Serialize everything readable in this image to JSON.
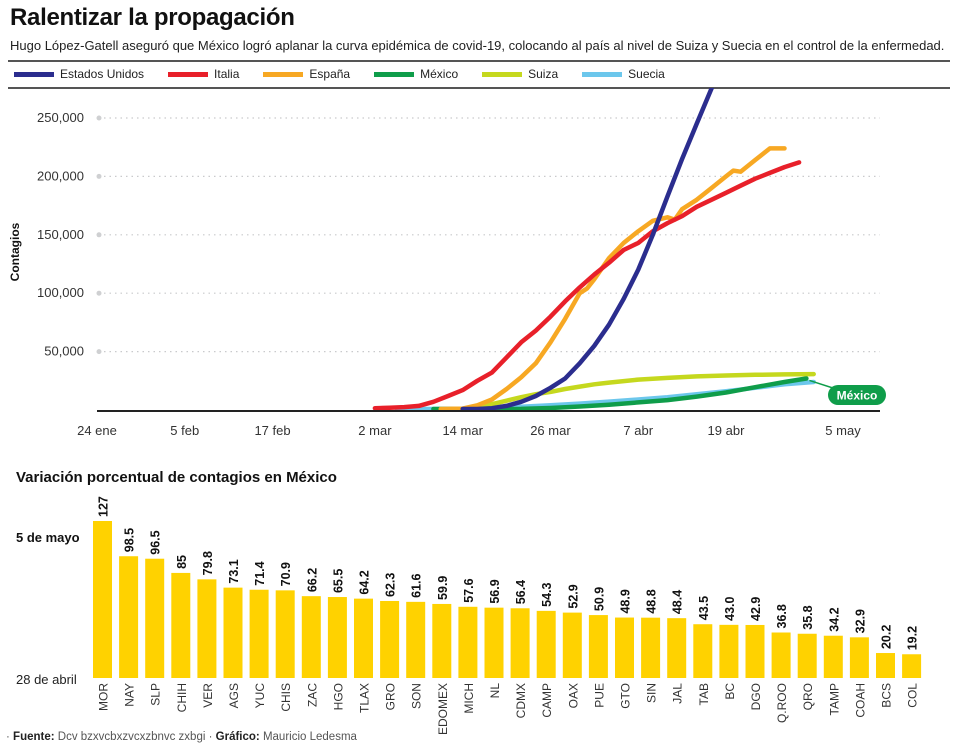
{
  "header": {
    "title": "Ralentizar la propagación",
    "subtitle": "Hugo López-Gatell aseguró que México logró aplanar la curva epidémica de covid-19, colocando al país al nivel de Suiza y Suecia en el control de la enfermedad."
  },
  "legend": [
    {
      "label": "Estados Unidos",
      "color": "#2b2d8e"
    },
    {
      "label": "Italia",
      "color": "#e8202a"
    },
    {
      "label": "España",
      "color": "#f7a823"
    },
    {
      "label": "México",
      "color": "#0f9d4a"
    },
    {
      "label": "Suiza",
      "color": "#c5d81e"
    },
    {
      "label": "Suecia",
      "color": "#6cc7ec"
    }
  ],
  "chart_data": [
    {
      "type": "line",
      "title": "Ralentizar la propagación",
      "xlabel": "",
      "ylabel": "Contagios",
      "x_ticks": [
        "24 ene",
        "5 feb",
        "17 feb",
        "2 mar",
        "14 mar",
        "26 mar",
        "7 abr",
        "19 abr",
        "5 may"
      ],
      "x_tick_days": [
        0,
        12,
        24,
        38,
        50,
        62,
        74,
        86,
        102
      ],
      "x_unit": "days since 24 ene",
      "y_ticks": [
        50000,
        100000,
        150000,
        200000,
        250000
      ],
      "y_tick_labels": [
        "50,000",
        "100,000",
        "150,000",
        "200,000",
        "250,000"
      ],
      "ylim": [
        0,
        250000
      ],
      "grid": true,
      "legend_position": "top",
      "annotation": {
        "label": "México",
        "series": "México",
        "color": "#0f9d4a"
      },
      "series": [
        {
          "name": "Estados Unidos",
          "color": "#2b2d8e",
          "points": [
            [
              50,
              0
            ],
            [
              52,
              600
            ],
            [
              54,
              1500
            ],
            [
              56,
              3500
            ],
            [
              58,
              7000
            ],
            [
              60,
              12000
            ],
            [
              62,
              19000
            ],
            [
              64,
              27000
            ],
            [
              66,
              40000
            ],
            [
              68,
              55000
            ],
            [
              70,
              73000
            ],
            [
              72,
              95000
            ],
            [
              74,
              120000
            ],
            [
              76,
              150000
            ],
            [
              78,
              183000
            ],
            [
              80,
              215000
            ],
            [
              82,
              245000
            ],
            [
              84,
              275000
            ],
            [
              86,
              305000
            ],
            [
              88,
              337000
            ]
          ]
        },
        {
          "name": "Italia",
          "color": "#e8202a",
          "points": [
            [
              38,
              1500
            ],
            [
              40,
              2000
            ],
            [
              42,
              2500
            ],
            [
              44,
              3500
            ],
            [
              46,
              7000
            ],
            [
              48,
              12000
            ],
            [
              50,
              17000
            ],
            [
              52,
              25000
            ],
            [
              54,
              32000
            ],
            [
              56,
              45000
            ],
            [
              58,
              58000
            ],
            [
              60,
              68000
            ],
            [
              62,
              80000
            ],
            [
              64,
              93000
            ],
            [
              66,
              105000
            ],
            [
              68,
              116000
            ],
            [
              70,
              126000
            ],
            [
              72,
              137000
            ],
            [
              74,
              143000
            ],
            [
              76,
              153000
            ],
            [
              78,
              160000
            ],
            [
              80,
              166000
            ],
            [
              82,
              174000
            ],
            [
              84,
              180000
            ],
            [
              86,
              186000
            ],
            [
              88,
              192000
            ],
            [
              90,
              198000
            ],
            [
              92,
              203000
            ],
            [
              94,
              208000
            ],
            [
              96,
              212000
            ]
          ]
        },
        {
          "name": "España",
          "color": "#f7a823",
          "points": [
            [
              47,
              500
            ],
            [
              50,
              1200
            ],
            [
              52,
              4000
            ],
            [
              54,
              9000
            ],
            [
              56,
              18000
            ],
            [
              58,
              28000
            ],
            [
              60,
              40000
            ],
            [
              62,
              58000
            ],
            [
              64,
              78000
            ],
            [
              66,
              100000
            ],
            [
              67,
              104000
            ],
            [
              68,
              112000
            ],
            [
              70,
              130000
            ],
            [
              72,
              143000
            ],
            [
              73,
              148000
            ],
            [
              74,
              153000
            ],
            [
              76,
              162000
            ],
            [
              78,
              165000
            ],
            [
              79,
              163000
            ],
            [
              80,
              172000
            ],
            [
              82,
              180000
            ],
            [
              84,
              190000
            ],
            [
              86,
              200000
            ],
            [
              87,
              205000
            ],
            [
              88,
              204000
            ],
            [
              90,
              214000
            ],
            [
              92,
              224000
            ],
            [
              94,
              224000
            ]
          ]
        },
        {
          "name": "México",
          "color": "#0f9d4a",
          "points": [
            [
              46,
              0
            ],
            [
              50,
              200
            ],
            [
              54,
              400
            ],
            [
              58,
              900
            ],
            [
              62,
              1700
            ],
            [
              66,
              3000
            ],
            [
              70,
              4500
            ],
            [
              74,
              6500
            ],
            [
              78,
              8500
            ],
            [
              82,
              11500
            ],
            [
              86,
              15000
            ],
            [
              90,
              19500
            ],
            [
              94,
              24000
            ],
            [
              97,
              27000
            ]
          ]
        },
        {
          "name": "Suiza",
          "color": "#c5d81e",
          "points": [
            [
              50,
              0
            ],
            [
              52,
              2000
            ],
            [
              54,
              5000
            ],
            [
              56,
              8000
            ],
            [
              58,
              11000
            ],
            [
              60,
              13500
            ],
            [
              62,
              15500
            ],
            [
              64,
              18000
            ],
            [
              66,
              20000
            ],
            [
              68,
              22000
            ],
            [
              70,
              23500
            ],
            [
              74,
              26000
            ],
            [
              78,
              27500
            ],
            [
              82,
              28800
            ],
            [
              86,
              29500
            ],
            [
              90,
              30100
            ],
            [
              94,
              30500
            ],
            [
              98,
              30700
            ]
          ]
        },
        {
          "name": "Suecia",
          "color": "#6cc7ec",
          "points": [
            [
              41,
              0
            ],
            [
              46,
              500
            ],
            [
              50,
              1000
            ],
            [
              54,
              1800
            ],
            [
              58,
              2800
            ],
            [
              62,
              4000
            ],
            [
              66,
              5500
            ],
            [
              70,
              7200
            ],
            [
              74,
              9000
            ],
            [
              78,
              11000
            ],
            [
              82,
              13500
            ],
            [
              86,
              16000
            ],
            [
              90,
              19000
            ],
            [
              94,
              22000
            ],
            [
              98,
              24000
            ]
          ]
        }
      ]
    },
    {
      "type": "bar",
      "title": "Variación porcentual de contagios en México",
      "xlabel": "",
      "ylabel": "",
      "y_range_labels": {
        "top": "5 de mayo",
        "bottom": "28 de abril"
      },
      "categories": [
        "MOR",
        "NAY",
        "SLP",
        "CHIH",
        "VER",
        "AGS",
        "YUC",
        "CHIS",
        "ZAC",
        "HGO",
        "TLAX",
        "GRO",
        "SON",
        "EDOMEX",
        "MICH",
        "NL",
        "CDMX",
        "CAMP",
        "OAX",
        "PUE",
        "GTO",
        "SIN",
        "JAL",
        "TAB",
        "BC",
        "DGO",
        "Q.ROO",
        "QRO",
        "TAMP",
        "COAH",
        "BCS",
        "COL"
      ],
      "values": [
        127,
        98.5,
        96.5,
        85,
        79.8,
        73.1,
        71.4,
        70.9,
        66.2,
        65.5,
        64.2,
        62.3,
        61.6,
        59.9,
        57.6,
        56.9,
        56.4,
        54.3,
        52.9,
        50.9,
        48.9,
        48.8,
        48.4,
        43.5,
        43.0,
        42.9,
        36.8,
        35.8,
        34.2,
        32.9,
        20.2,
        19.2
      ],
      "value_labels": [
        "127",
        "98.5",
        "96.5",
        "85",
        "79.8",
        "73.1",
        "71.4",
        "70.9",
        "66.2",
        "65.5",
        "64.2",
        "62.3",
        "61.6",
        "59.9",
        "57.6",
        "56.9",
        "56.4",
        "54.3",
        "52.9",
        "50.9",
        "48.9",
        "48.8",
        "48.4",
        "43.5",
        "43.0",
        "42.9",
        "36.8",
        "35.8",
        "34.2",
        "32.9",
        "20.2",
        "19.2"
      ],
      "bar_color": "#ffd200",
      "ylim": [
        0,
        127
      ]
    }
  ],
  "footer": {
    "source_label": "Fuente:",
    "source_text": "Dcv bzxvcbxzvcxzbnvc zxbgi",
    "graphic_label": "Gráfico:",
    "graphic_text": "Mauricio Ledesma",
    "separator": "·"
  }
}
